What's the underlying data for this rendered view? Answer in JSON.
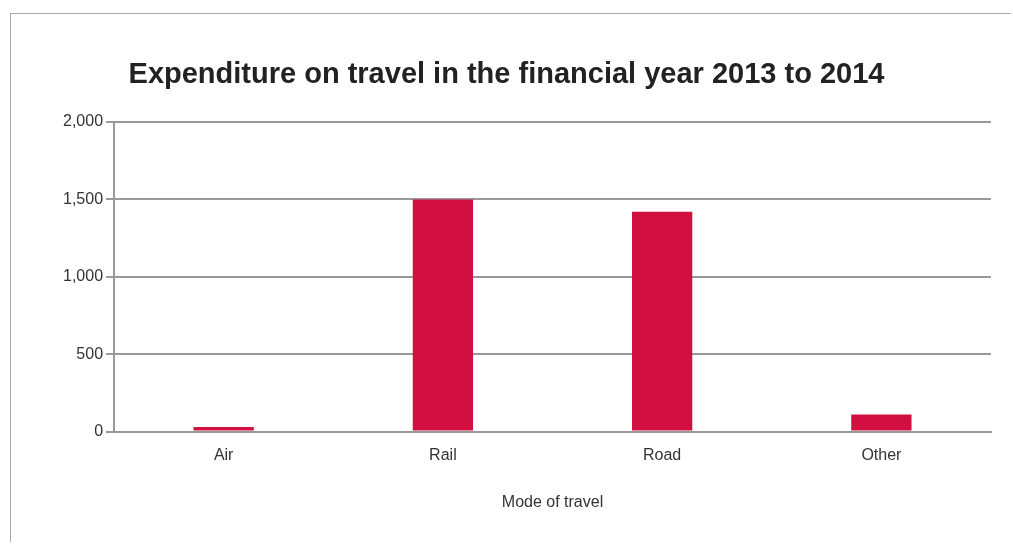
{
  "chart_data": {
    "type": "bar",
    "title": "Expenditure on travel in the financial year 2013 to 2014",
    "xlabel": "Mode of travel",
    "categories": [
      "Air",
      "Rail",
      "Road",
      "Other"
    ],
    "values": [
      30,
      1500,
      1420,
      110
    ],
    "color": "#d10f40",
    "ylim": [
      0,
      2000
    ],
    "yticks": [
      {
        "value": 0,
        "label": "0"
      },
      {
        "value": 500,
        "label": "500"
      },
      {
        "value": 1000,
        "label": "1,000"
      },
      {
        "value": 1500,
        "label": "1,500"
      },
      {
        "value": 2000,
        "label": "2,000"
      }
    ],
    "grid": "y",
    "legend": false
  }
}
